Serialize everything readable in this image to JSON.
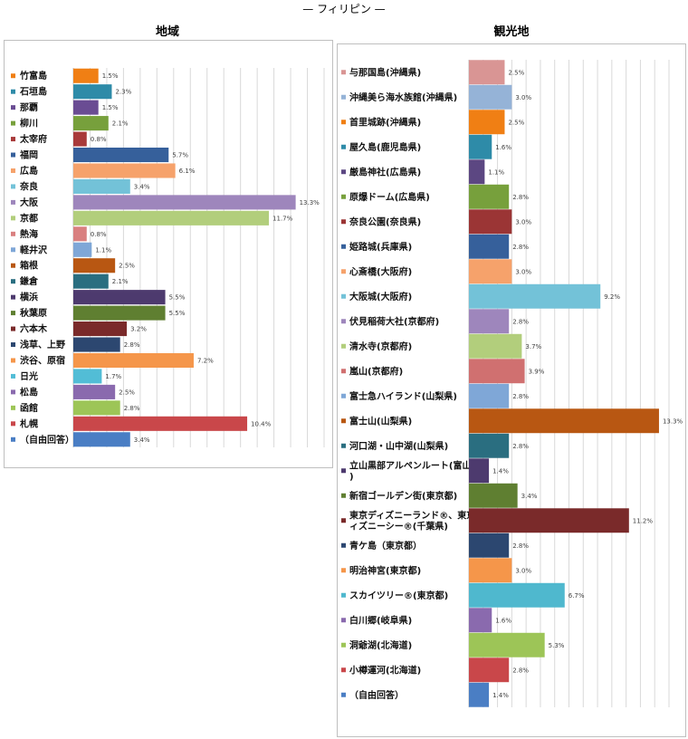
{
  "page_title": "— フィリピン —",
  "chart_data": [
    {
      "type": "bar",
      "title": "地域",
      "categories": [
        "竹富島",
        "石垣島",
        "那覇",
        "柳川",
        "太宰府",
        "福岡",
        "広島",
        "奈良",
        "大阪",
        "京都",
        "熱海",
        "軽井沢",
        "箱根",
        "鎌倉",
        "横浜",
        "秋葉原",
        "六本木",
        "浅草、上野",
        "渋谷、原宿",
        "日光",
        "松島",
        "函館",
        "札幌",
        "（自由回答）"
      ],
      "values": [
        1.5,
        2.3,
        1.5,
        2.1,
        0.8,
        5.7,
        6.1,
        3.4,
        13.3,
        11.7,
        0.8,
        1.1,
        2.5,
        2.1,
        5.5,
        5.5,
        3.2,
        2.8,
        7.2,
        1.7,
        2.5,
        2.8,
        10.4,
        3.4
      ],
      "value_labels": [
        "1.5%",
        "2.3%",
        "1.5%",
        "2.1%",
        "0.8%",
        "5.7%",
        "6.1%",
        "3.4%",
        "13.3%",
        "11.7%",
        "0.8%",
        "1.1%",
        "2.5%",
        "2.1%",
        "5.5%",
        "5.5%",
        "3.2%",
        "2.8%",
        "7.2%",
        "1.7%",
        "2.5%",
        "2.8%",
        "10.4%",
        "3.4%"
      ],
      "colors": [
        "#F07F14",
        "#2E8BA8",
        "#6A4C93",
        "#77A03C",
        "#A83A3A",
        "#36609B",
        "#F6A26B",
        "#73C2D8",
        "#9E86BC",
        "#B2CE7C",
        "#D98080",
        "#7FA7D7",
        "#B85712",
        "#2A6E80",
        "#4D3A6E",
        "#5F7F31",
        "#7A2A2A",
        "#2C4770",
        "#F5964A",
        "#52BDD6",
        "#8A6AAE",
        "#9DC557",
        "#C9474A",
        "#4A7EC4"
      ],
      "xlim": [
        0,
        15
      ],
      "grid": true
    },
    {
      "type": "bar",
      "title": "観光地",
      "categories": [
        "与那国島(沖縄県)",
        "沖縄美ら海水族館(沖縄県)",
        "首里城跡(沖縄県)",
        "屋久島(鹿児島県)",
        "厳島神社(広島県)",
        "原爆ドーム(広島県)",
        "奈良公園(奈良県)",
        "姫路城(兵庫県)",
        "心斎橋(大阪府)",
        "大阪城(大阪府)",
        "伏見稲荷大社(京都府)",
        "清水寺(京都府)",
        "嵐山(京都府)",
        "富士急ハイランド(山梨県)",
        "富士山(山梨県)",
        "河口湖・山中湖(山梨県)",
        "立山黒部アルペンルート(富山県)",
        "新宿ゴールデン街(東京都)",
        "東京ディズニーランド®、東京ディズニーシー®(千葉県)",
        "青ケ島（東京都）",
        "明治神宮(東京都)",
        "スカイツリー®(東京都)",
        "白川郷(岐阜県)",
        "洞爺湖(北海道)",
        "小樽運河(北海道)",
        "（自由回答）"
      ],
      "values": [
        2.5,
        3.0,
        2.5,
        1.6,
        1.1,
        2.8,
        3.0,
        2.8,
        3.0,
        9.2,
        2.8,
        3.7,
        3.9,
        2.8,
        13.3,
        2.8,
        1.4,
        3.4,
        11.2,
        2.8,
        3.0,
        6.7,
        1.6,
        5.3,
        2.8,
        1.4
      ],
      "value_labels": [
        "2.5%",
        "3.0%",
        "2.5%",
        "1.6%",
        "1.1%",
        "2.8%",
        "3.0%",
        "2.8%",
        "3.0%",
        "9.2%",
        "2.8%",
        "3.7%",
        "3.9%",
        "2.8%",
        "13.3%",
        "2.8%",
        "1.4%",
        "3.4%",
        "11.2%",
        "2.8%",
        "3.0%",
        "6.7%",
        "1.6%",
        "5.3%",
        "2.8%",
        "1.4%"
      ],
      "colors": [
        "#D99594",
        "#95B3D7",
        "#F07F14",
        "#2E8BA8",
        "#5C4782",
        "#77A03C",
        "#9B3535",
        "#36609B",
        "#F6A26B",
        "#73C2D8",
        "#9E86BC",
        "#B2CE7C",
        "#D07070",
        "#7FA7D7",
        "#B85712",
        "#2A6E80",
        "#4D3A6E",
        "#5F7F31",
        "#7A2A2A",
        "#2C4770",
        "#F5964A",
        "#4FB8CE",
        "#8A6AAE",
        "#9DC557",
        "#C9474A",
        "#4A7EC4"
      ],
      "xlim": [
        0,
        14
      ],
      "grid": true
    }
  ]
}
